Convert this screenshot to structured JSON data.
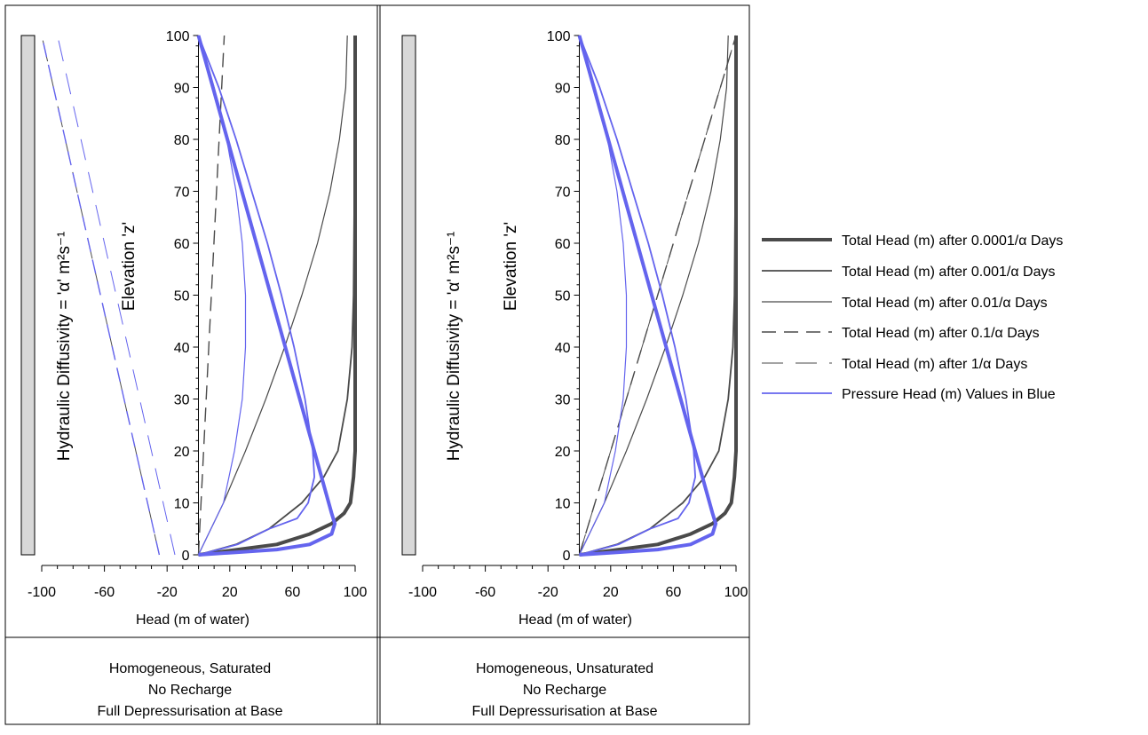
{
  "colors": {
    "total_head": "#4a4a4a",
    "pressure_head": "#6464ee",
    "frame": "#000000",
    "depth_bar_fill": "#d8d8d8"
  },
  "legend": {
    "placement": "right",
    "entries": [
      {
        "label": "Total Head (m) after 0.0001/α Days",
        "style": "solid-thick",
        "color": "#4a4a4a"
      },
      {
        "label": "Total Head (m) after 0.001/α Days",
        "style": "solid-medium",
        "color": "#4a4a4a"
      },
      {
        "label": "Total Head (m) after 0.01/α Days",
        "style": "solid-thin",
        "color": "#4a4a4a"
      },
      {
        "label": "Total Head (m) after 0.1/α Days",
        "style": "dashed-long",
        "color": "#4a4a4a"
      },
      {
        "label": "Total Head (m) after 1/α Days",
        "style": "dashed-sparse",
        "color": "#4a4a4a"
      },
      {
        "label": "Pressure Head (m) Values in Blue",
        "style": "solid-medium",
        "color": "#6464ee"
      }
    ]
  },
  "chart_data": [
    {
      "type": "line",
      "panel": "left",
      "xlabel": "Head (m of water)",
      "ylabel": "Elevation 'z'",
      "side_label": "Hydraulic Diffusivity = 'α' m²s⁻¹",
      "xlim": [
        -100,
        100
      ],
      "ylim": [
        0,
        100
      ],
      "x_ticks": [
        -100,
        -60,
        -20,
        20,
        60,
        100
      ],
      "y_ticks": [
        0,
        10,
        20,
        30,
        40,
        50,
        60,
        70,
        80,
        90,
        100
      ],
      "caption": [
        "Homogeneous, Saturated",
        "No Recharge",
        "Full Depressurisation at Base"
      ],
      "series": [
        {
          "kind": "total",
          "style": "solid-thick",
          "points": [
            [
              0,
              0
            ],
            [
              25,
              1
            ],
            [
              50,
              2
            ],
            [
              71,
              4
            ],
            [
              85,
              6
            ],
            [
              93,
              8
            ],
            [
              97,
              10
            ],
            [
              99,
              15
            ],
            [
              100,
              20
            ],
            [
              100,
              40
            ],
            [
              100,
              100
            ]
          ]
        },
        {
          "kind": "total",
          "style": "solid-medium",
          "points": [
            [
              0,
              0
            ],
            [
              24,
              2
            ],
            [
              45,
              5
            ],
            [
              66,
              10
            ],
            [
              80,
              15
            ],
            [
              89,
              20
            ],
            [
              95,
              30
            ],
            [
              98,
              40
            ],
            [
              99,
              50
            ],
            [
              99.5,
              70
            ],
            [
              100,
              100
            ]
          ]
        },
        {
          "kind": "total",
          "style": "solid-thin",
          "points": [
            [
              0,
              0
            ],
            [
              8,
              5
            ],
            [
              16,
              10
            ],
            [
              30,
              20
            ],
            [
              43,
              30
            ],
            [
              55,
              40
            ],
            [
              66,
              50
            ],
            [
              76,
              60
            ],
            [
              84,
              70
            ],
            [
              90,
              80
            ],
            [
              94,
              90
            ],
            [
              95,
              100
            ]
          ]
        },
        {
          "kind": "total",
          "style": "dashed-long",
          "points": [
            [
              0,
              0
            ],
            [
              16.5,
              100
            ]
          ]
        },
        {
          "kind": "total",
          "style": "dashed-sparse",
          "points": [
            [
              -25,
              0
            ],
            [
              -100,
              100
            ]
          ]
        },
        {
          "kind": "pressure",
          "style": "solid-thick",
          "points": [
            [
              0,
              100
            ],
            [
              85,
              8
            ],
            [
              87,
              6
            ],
            [
              85,
              4
            ],
            [
              71,
              2
            ],
            [
              50,
              1
            ],
            [
              25,
              0.5
            ],
            [
              0,
              0
            ]
          ]
        },
        {
          "kind": "pressure",
          "style": "solid-medium",
          "points": [
            [
              0,
              100
            ],
            [
              13,
              90
            ],
            [
              24,
              80
            ],
            [
              34,
              70
            ],
            [
              44,
              60
            ],
            [
              53,
              50
            ],
            [
              61,
              40
            ],
            [
              68,
              30
            ],
            [
              73,
              20
            ],
            [
              74,
              15
            ],
            [
              70,
              10
            ],
            [
              63,
              7
            ],
            [
              45,
              5
            ],
            [
              25,
              2
            ],
            [
              0,
              0
            ]
          ]
        },
        {
          "kind": "pressure",
          "style": "solid-thin",
          "points": [
            [
              0,
              100
            ],
            [
              10,
              90
            ],
            [
              18,
              80
            ],
            [
              24,
              70
            ],
            [
              28,
              60
            ],
            [
              30,
              50
            ],
            [
              30,
              40
            ],
            [
              28,
              30
            ],
            [
              23,
              20
            ],
            [
              16,
              10
            ],
            [
              8,
              5
            ],
            [
              0,
              0
            ]
          ]
        },
        {
          "kind": "pressure",
          "style": "dashed-long",
          "points": [
            [
              -25,
              0
            ],
            [
              -100,
              100
            ]
          ]
        },
        {
          "kind": "pressure",
          "style": "dashed-sparse",
          "points": [
            [
              -15,
              0
            ],
            [
              -90,
              100
            ]
          ]
        }
      ]
    },
    {
      "type": "line",
      "panel": "right",
      "xlabel": "Head (m of water)",
      "ylabel": "Elevation 'z'",
      "side_label": "Hydraulic Diffusivity = 'α' m²s⁻¹",
      "xlim": [
        -100,
        100
      ],
      "ylim": [
        0,
        100
      ],
      "x_ticks": [
        -100,
        -60,
        -20,
        20,
        60,
        100
      ],
      "y_ticks": [
        0,
        10,
        20,
        30,
        40,
        50,
        60,
        70,
        80,
        90,
        100
      ],
      "caption": [
        "Homogeneous, Unsaturated",
        "No Recharge",
        "Full Depressurisation at Base"
      ],
      "series": [
        {
          "kind": "total",
          "style": "solid-thick",
          "points": [
            [
              0,
              0
            ],
            [
              25,
              1
            ],
            [
              50,
              2
            ],
            [
              71,
              4
            ],
            [
              85,
              6
            ],
            [
              93,
              8
            ],
            [
              97,
              10
            ],
            [
              99,
              15
            ],
            [
              100,
              20
            ],
            [
              100,
              40
            ],
            [
              100,
              100
            ]
          ]
        },
        {
          "kind": "total",
          "style": "solid-medium",
          "points": [
            [
              0,
              0
            ],
            [
              24,
              2
            ],
            [
              45,
              5
            ],
            [
              66,
              10
            ],
            [
              80,
              15
            ],
            [
              89,
              20
            ],
            [
              95,
              30
            ],
            [
              98,
              40
            ],
            [
              99,
              50
            ],
            [
              99.5,
              70
            ],
            [
              100,
              100
            ]
          ]
        },
        {
          "kind": "total",
          "style": "solid-thin",
          "points": [
            [
              0,
              0
            ],
            [
              8,
              5
            ],
            [
              16,
              10
            ],
            [
              30,
              20
            ],
            [
              43,
              30
            ],
            [
              55,
              40
            ],
            [
              66,
              50
            ],
            [
              76,
              60
            ],
            [
              84,
              70
            ],
            [
              90,
              80
            ],
            [
              94,
              90
            ],
            [
              95,
              100
            ]
          ]
        },
        {
          "kind": "total",
          "style": "dashed-long",
          "points": [
            [
              0,
              0
            ],
            [
              100,
              100
            ]
          ]
        },
        {
          "kind": "total",
          "style": "dashed-sparse",
          "points": [
            [
              0,
              0
            ],
            [
              100,
              100
            ]
          ]
        },
        {
          "kind": "pressure",
          "style": "solid-thick",
          "points": [
            [
              0,
              100
            ],
            [
              85,
              8
            ],
            [
              87,
              6
            ],
            [
              85,
              4
            ],
            [
              71,
              2
            ],
            [
              50,
              1
            ],
            [
              25,
              0.5
            ],
            [
              0,
              0
            ]
          ]
        },
        {
          "kind": "pressure",
          "style": "solid-medium",
          "points": [
            [
              0,
              100
            ],
            [
              13,
              90
            ],
            [
              24,
              80
            ],
            [
              34,
              70
            ],
            [
              44,
              60
            ],
            [
              53,
              50
            ],
            [
              61,
              40
            ],
            [
              68,
              30
            ],
            [
              73,
              20
            ],
            [
              74,
              15
            ],
            [
              70,
              10
            ],
            [
              63,
              7
            ],
            [
              45,
              5
            ],
            [
              25,
              2
            ],
            [
              0,
              0
            ]
          ]
        },
        {
          "kind": "pressure",
          "style": "solid-thin",
          "points": [
            [
              0,
              100
            ],
            [
              10,
              90
            ],
            [
              18,
              80
            ],
            [
              24,
              70
            ],
            [
              28,
              60
            ],
            [
              30,
              50
            ],
            [
              30,
              40
            ],
            [
              28,
              30
            ],
            [
              23,
              20
            ],
            [
              16,
              10
            ],
            [
              8,
              5
            ],
            [
              0,
              0
            ]
          ]
        }
      ]
    }
  ]
}
